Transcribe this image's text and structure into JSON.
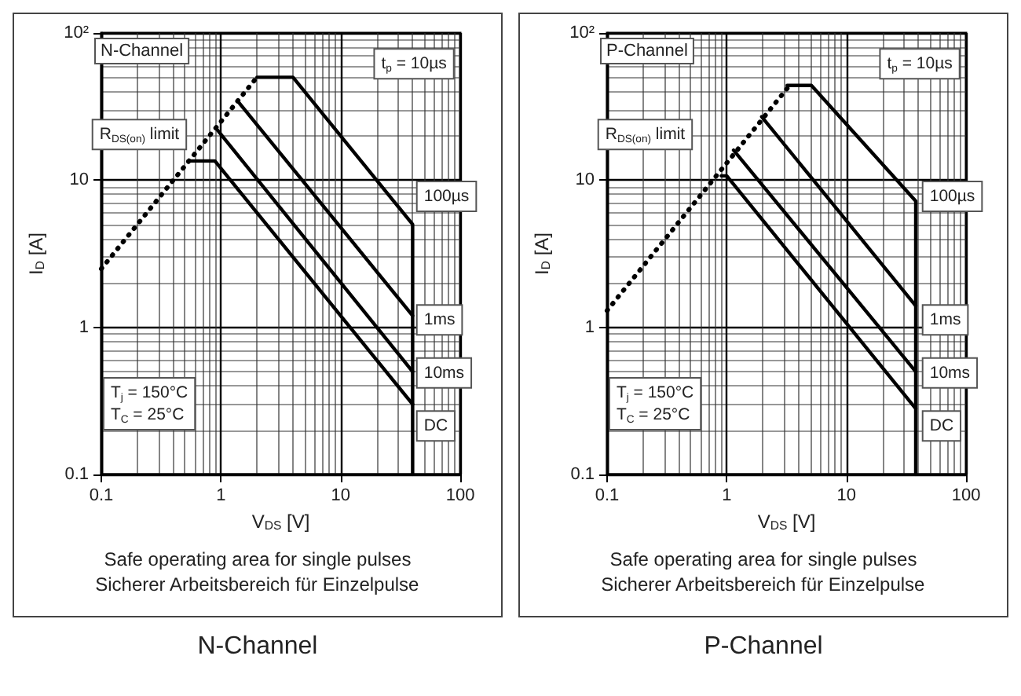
{
  "chart_data": [
    {
      "type": "line",
      "title": "N-Channel",
      "subtitle": "N-Channel",
      "xlabel": "V$_{DS}$ [V]",
      "ylabel": "I$_{D}$ [A]",
      "log": "xy",
      "grid": true,
      "marker": "none",
      "xlim": [
        0.1,
        100
      ],
      "ylim": [
        0.1,
        100
      ],
      "xticks": [
        0.1,
        1,
        10,
        100
      ],
      "yticks": [
        0.1,
        1,
        10,
        {
          "value": 100,
          "label": "10²"
        }
      ],
      "series": [
        {
          "color": "#000000",
          "line_style": "dotted",
          "x": [
            0.1,
            2
          ],
          "values": [
            2.5,
            50
          ]
        },
        {
          "color": "#000000",
          "line_style": "solid",
          "x": [
            2,
            4,
            40,
            40
          ],
          "values": [
            50,
            50,
            5,
            0.1
          ]
        },
        {
          "color": "#000000",
          "line_style": "solid",
          "x": [
            1.4,
            40
          ],
          "values": [
            34,
            1.2
          ]
        },
        {
          "color": "#000000",
          "line_style": "solid",
          "x": [
            0.93,
            40
          ],
          "values": [
            22,
            0.5
          ]
        },
        {
          "color": "#000000",
          "line_style": "solid",
          "x": [
            0.53,
            0.89,
            40
          ],
          "values": [
            13.5,
            13.5,
            0.3
          ]
        }
      ],
      "annotations": [
        "100µs",
        "1ms",
        "10ms",
        "DC",
        "t$_{p}$ = 10µs",
        "R$_{DS(on)}$ limit",
        "T$_{j}$ = 150°C\nT$_{C}$ = 25°C",
        "Safe operating area for single pulses",
        "Sicherer Arbeitsbereich für Einzelpulse"
      ]
    },
    {
      "type": "line",
      "title": "P-Channel",
      "subtitle": "P-Channel",
      "xlabel": "V$_{DS}$ [V]",
      "ylabel": "I$_{D}$ [A]",
      "log": "xy",
      "grid": true,
      "marker": "none",
      "xlim": [
        0.1,
        100
      ],
      "ylim": [
        0.1,
        100
      ],
      "xticks": [
        0.1,
        1,
        10,
        100
      ],
      "yticks": [
        0.1,
        1,
        10,
        {
          "value": 100,
          "label": "10²"
        }
      ],
      "series": [
        {
          "color": "#000000",
          "line_style": "dotted",
          "x": [
            0.1,
            3.2
          ],
          "values": [
            1.3,
            42
          ]
        },
        {
          "color": "#000000",
          "line_style": "solid",
          "x": [
            3.2,
            5.1,
            38,
            38
          ],
          "values": [
            44,
            44,
            7.2,
            0.1
          ]
        },
        {
          "color": "#000000",
          "line_style": "solid",
          "x": [
            1.96,
            38
          ],
          "values": [
            27,
            1.4
          ]
        },
        {
          "color": "#000000",
          "line_style": "solid",
          "x": [
            1.14,
            38
          ],
          "values": [
            16,
            0.5
          ]
        },
        {
          "color": "#000000",
          "line_style": "solid",
          "x": [
            0.9,
            1.0,
            38
          ],
          "values": [
            10.7,
            10.7,
            0.28
          ]
        }
      ],
      "annotations": [
        "100µs",
        "1ms",
        "10ms",
        "DC",
        "t$_{p}$ = 10µs",
        "R$_{DS(on)}$ limit",
        "T$_{j}$ = 150°C\nT$_{C}$ = 25°C",
        "Safe operating area for single pulses",
        "Sicherer Arbeitsbereich für Einzelpulse"
      ]
    }
  ]
}
